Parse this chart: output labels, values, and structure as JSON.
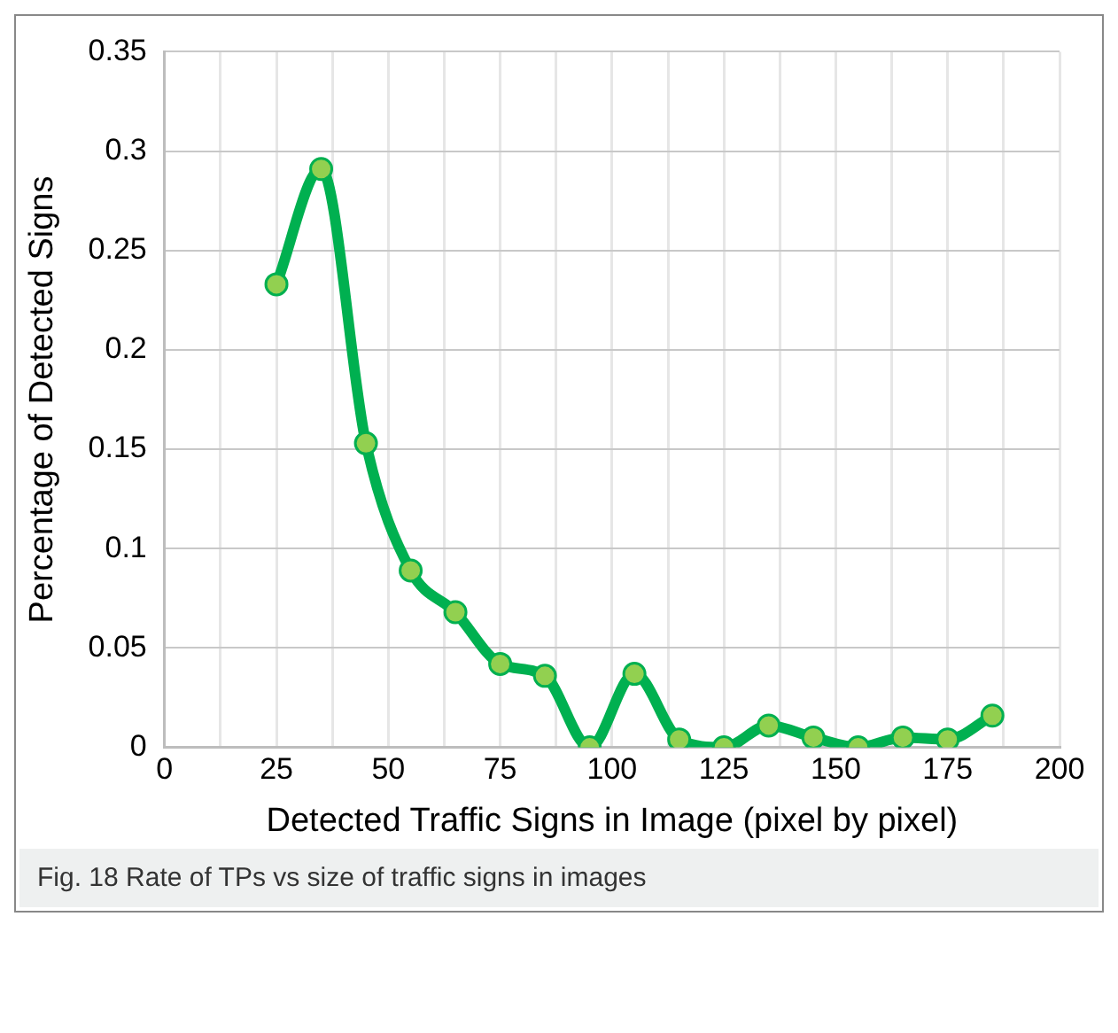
{
  "chart_data": {
    "type": "line",
    "xlabel": "Detected Traffic Signs in Image (pixel by pixel)",
    "ylabel": "Percentage of Detected Signs",
    "annotations": [
      "Fig. 18 Rate of TPs vs size of traffic signs in images"
    ],
    "x": [
      25,
      35,
      45,
      55,
      65,
      75,
      85,
      95,
      105,
      115,
      125,
      135,
      145,
      155,
      165,
      175,
      185
    ],
    "series": [
      {
        "color": "#00b050",
        "values": [
          0.233,
          0.291,
          0.153,
          0.089,
          0.068,
          0.042,
          0.036,
          0,
          0.037,
          0.004,
          0,
          0.011,
          0.005,
          0,
          0.005,
          0.004,
          0.016
        ]
      }
    ],
    "xlim": [
      0,
      200
    ],
    "xticks": [
      0,
      {
        "value": 12.5,
        "label": null
      },
      25,
      {
        "value": 37.5,
        "label": null
      },
      50,
      {
        "value": 62.5,
        "label": null
      },
      75,
      {
        "value": 87.5,
        "label": null
      },
      100,
      {
        "value": 112.5,
        "label": null
      },
      125,
      {
        "value": 137.5,
        "label": null
      },
      150,
      {
        "value": 162.5,
        "label": null
      },
      175,
      {
        "value": 187.5,
        "label": null
      },
      200
    ],
    "ylim": [
      0,
      0.35
    ],
    "yticks": [
      0,
      0.05,
      0.1,
      0.15,
      0.2,
      0.25,
      0.3,
      0.35
    ],
    "grid": true,
    "marker": "circle",
    "line_style": "solid"
  }
}
